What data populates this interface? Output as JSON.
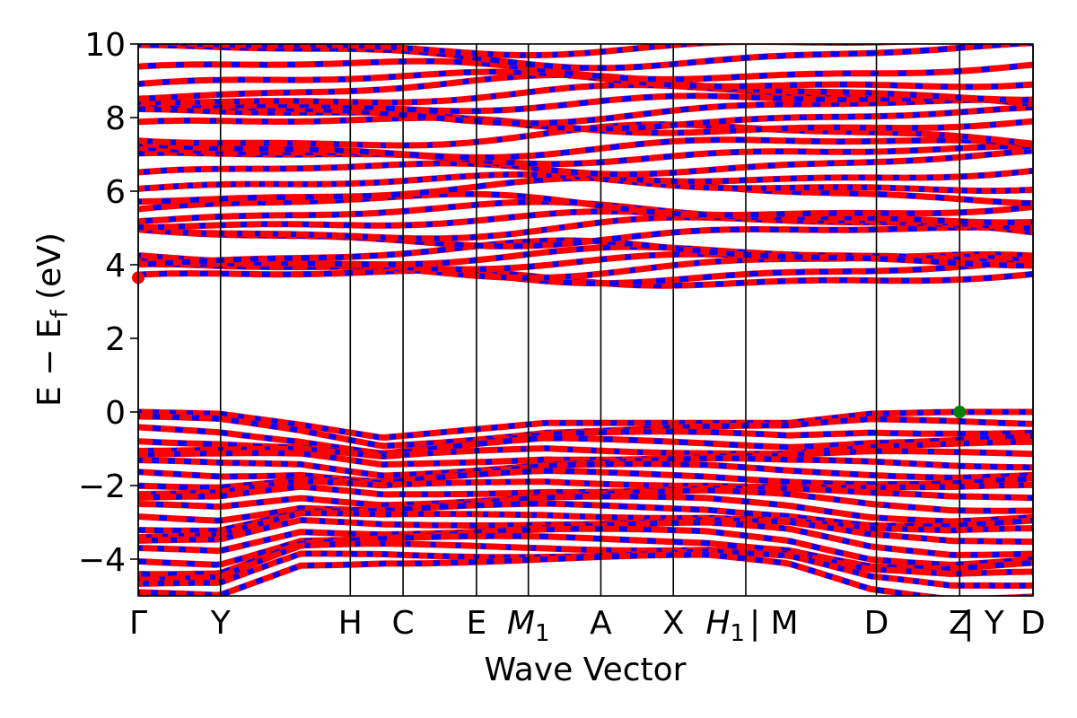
{
  "chart_data": {
    "type": "line",
    "title": "",
    "xlabel": "Wave Vector",
    "ylabel": "E − E",
    "ylabel_sub": "f",
    "ylabel_unit": " (eV)",
    "ylim": [
      -5,
      10
    ],
    "yticks": [
      10,
      8,
      6,
      4,
      2,
      0,
      -2,
      -4
    ],
    "ytick_labels": [
      "10",
      "8",
      "6",
      "4",
      "2",
      "0",
      "−2",
      "−4"
    ],
    "xlim": [
      0,
      1
    ],
    "kpoints": [
      {
        "label": "Γ",
        "x": 0.0
      },
      {
        "label": "Y",
        "x": 0.092
      },
      {
        "label": "H",
        "x": 0.237
      },
      {
        "label": "C",
        "x": 0.296
      },
      {
        "label": "E",
        "x": 0.378
      },
      {
        "label": "M",
        "sub": "1",
        "x": 0.436
      },
      {
        "label": "A",
        "x": 0.517
      },
      {
        "label": "X",
        "x": 0.598
      },
      {
        "label": "H",
        "sub": "1",
        "x": 0.679
      },
      {
        "label": "| M",
        "x": 0.679
      },
      {
        "label": "D",
        "x": 0.825
      },
      {
        "label": "Z",
        "x": 0.918
      },
      {
        "label": "| Y",
        "x": 0.918
      },
      {
        "label": "D",
        "x": 1.0
      }
    ],
    "band_colors": {
      "dominant": "#ff0000",
      "secondary": "#0000ff"
    },
    "markers": [
      {
        "name": "conduction-band-minimum",
        "x": 0.0,
        "y": 3.65,
        "color": "#ff0000"
      },
      {
        "name": "valence-band-maximum",
        "x": 0.918,
        "y": 0.0,
        "color": "#008000"
      }
    ],
    "valence_bands": {
      "count": 22,
      "top": [
        0.0,
        -0.05,
        -0.35,
        -0.7,
        -0.5,
        -0.3,
        -0.3,
        -0.3,
        -0.3,
        -0.05,
        0.0,
        0.0
      ],
      "bottom": [
        -5.0,
        -5.0,
        -4.1,
        -4.0,
        -4.0,
        -4.0,
        -4.0,
        -4.0,
        -4.2,
        -4.8,
        -5.0,
        -4.9
      ]
    },
    "conduction_bands": {
      "groups": [
        {
          "name": "group-4eV",
          "levels": [
            3.65,
            3.8,
            4.0,
            4.1,
            4.2,
            4.3
          ]
        },
        {
          "name": "group-5eV",
          "levels": [
            4.8,
            5.0,
            5.2,
            5.4,
            5.6
          ]
        },
        {
          "name": "group-6eV",
          "levels": [
            6.0,
            6.2,
            6.5,
            6.8,
            7.0,
            7.2,
            7.5
          ]
        },
        {
          "name": "group-8eV",
          "levels": [
            7.8,
            8.0,
            8.2,
            8.4,
            8.6,
            8.8,
            9.0,
            9.3,
            9.7,
            9.95
          ]
        }
      ]
    }
  }
}
